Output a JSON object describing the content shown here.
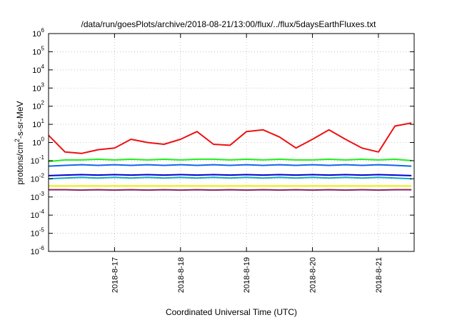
{
  "chart_data": {
    "type": "line",
    "title": "/data/run/goesPlots/archive/2018-08-21/13:00/flux/../flux/5daysEarthFluxes.txt",
    "xlabel": "Coordinated Universal Time (UTC)",
    "ylabel": "protons/cm2-s-sr-MeV",
    "yscale": "log",
    "ylim": [
      1e-06,
      1000000.0
    ],
    "xlim": [
      "2018-08-16 00:00",
      "2018-08-21 13:00"
    ],
    "grid": true,
    "x_ticks": [
      "2018-8-17",
      "2018-8-18",
      "2018-8-19",
      "2018-8-20",
      "2018-8-21"
    ],
    "y_ticks": [
      {
        "base": "10",
        "exp": "6"
      },
      {
        "base": "10",
        "exp": "5"
      },
      {
        "base": "10",
        "exp": "4"
      },
      {
        "base": "10",
        "exp": "3"
      },
      {
        "base": "10",
        "exp": "2"
      },
      {
        "base": "10",
        "exp": "1"
      },
      {
        "base": "10",
        "exp": "0"
      },
      {
        "base": "10",
        "exp": "-1"
      },
      {
        "base": "10",
        "exp": "-2"
      },
      {
        "base": "10",
        "exp": "-3"
      },
      {
        "base": "10",
        "exp": "-4"
      },
      {
        "base": "10",
        "exp": "-5"
      },
      {
        "base": "10",
        "exp": "-6"
      }
    ],
    "series_colors": [
      "#ee1111",
      "#22ee22",
      "#1166ee",
      "#11aacc",
      "#0000cc",
      "#eeee00",
      "#882266"
    ],
    "x": [
      "2018-08-16 00:00",
      "2018-08-16 06:00",
      "2018-08-16 12:00",
      "2018-08-16 18:00",
      "2018-08-17 00:00",
      "2018-08-17 06:00",
      "2018-08-17 12:00",
      "2018-08-17 18:00",
      "2018-08-18 00:00",
      "2018-08-18 06:00",
      "2018-08-18 12:00",
      "2018-08-18 18:00",
      "2018-08-19 00:00",
      "2018-08-19 06:00",
      "2018-08-19 12:00",
      "2018-08-19 18:00",
      "2018-08-20 00:00",
      "2018-08-20 06:00",
      "2018-08-20 12:00",
      "2018-08-20 18:00",
      "2018-08-21 00:00",
      "2018-08-21 06:00",
      "2018-08-21 12:00"
    ],
    "series": [
      {
        "values": [
          2.5,
          0.3,
          0.25,
          0.4,
          0.5,
          1.5,
          1.0,
          0.8,
          1.5,
          4.0,
          0.8,
          0.7,
          4.0,
          5.0,
          2.0,
          0.5,
          1.5,
          5.0,
          1.5,
          0.5,
          0.3,
          8.0,
          12.0
        ]
      },
      {
        "values": [
          0.09,
          0.11,
          0.11,
          0.12,
          0.11,
          0.12,
          0.11,
          0.12,
          0.11,
          0.12,
          0.12,
          0.11,
          0.12,
          0.11,
          0.12,
          0.11,
          0.11,
          0.12,
          0.11,
          0.12,
          0.11,
          0.12,
          0.1
        ]
      },
      {
        "values": [
          0.05,
          0.055,
          0.06,
          0.055,
          0.06,
          0.055,
          0.06,
          0.055,
          0.06,
          0.055,
          0.06,
          0.055,
          0.06,
          0.055,
          0.06,
          0.055,
          0.06,
          0.055,
          0.06,
          0.055,
          0.06,
          0.055,
          0.05
        ]
      },
      {
        "values": [
          0.01,
          0.011,
          0.012,
          0.011,
          0.012,
          0.011,
          0.012,
          0.011,
          0.012,
          0.011,
          0.012,
          0.011,
          0.012,
          0.011,
          0.012,
          0.011,
          0.012,
          0.011,
          0.012,
          0.011,
          0.012,
          0.011,
          0.01
        ]
      },
      {
        "values": [
          0.015,
          0.016,
          0.017,
          0.016,
          0.017,
          0.016,
          0.017,
          0.016,
          0.017,
          0.016,
          0.017,
          0.016,
          0.017,
          0.016,
          0.017,
          0.016,
          0.017,
          0.016,
          0.017,
          0.016,
          0.017,
          0.016,
          0.015
        ]
      },
      {
        "values": [
          0.004,
          0.004,
          0.004,
          0.004,
          0.004,
          0.004,
          0.004,
          0.004,
          0.004,
          0.004,
          0.004,
          0.004,
          0.004,
          0.004,
          0.004,
          0.004,
          0.004,
          0.004,
          0.004,
          0.004,
          0.004,
          0.004,
          0.004
        ]
      },
      {
        "values": [
          0.0025,
          0.0025,
          0.0024,
          0.0025,
          0.0024,
          0.0025,
          0.0024,
          0.0025,
          0.0024,
          0.0025,
          0.0024,
          0.0025,
          0.0024,
          0.0025,
          0.0024,
          0.0025,
          0.0024,
          0.0025,
          0.0024,
          0.0025,
          0.0024,
          0.0025,
          0.0025
        ]
      }
    ]
  }
}
